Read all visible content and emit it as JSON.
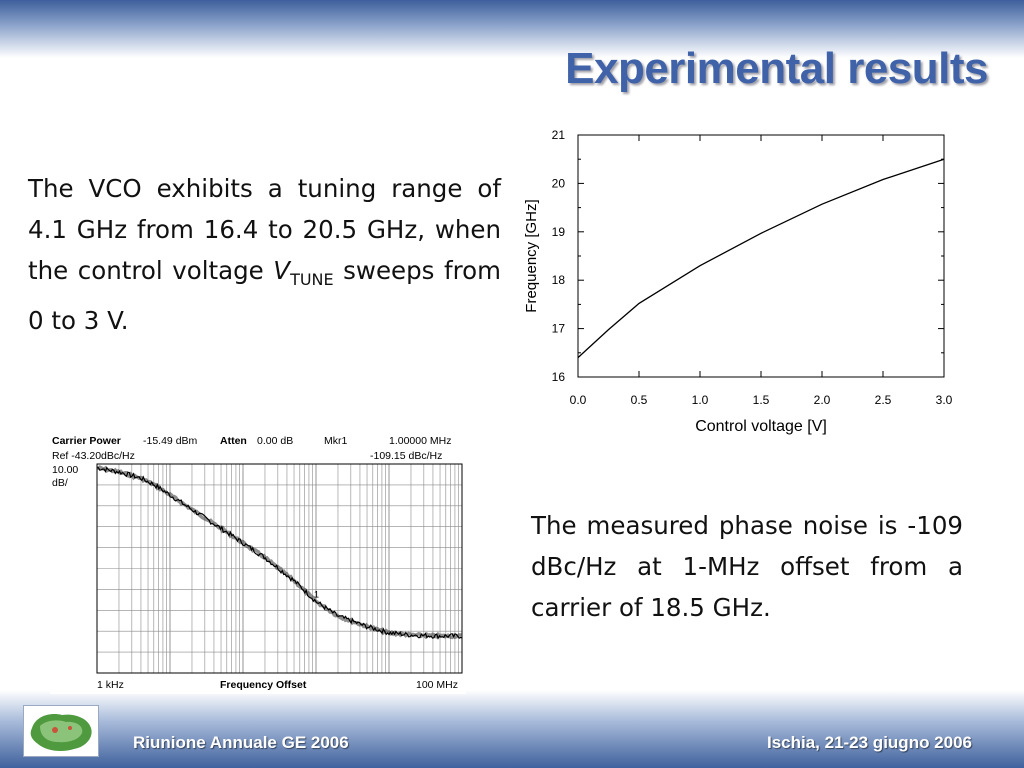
{
  "slide": {
    "title": "Experimental results",
    "paragraph1": {
      "text": "The VCO exhibits a tuning range of 4.1 GHz from 16.4 to 20.5 GHz, when the control voltage",
      "var_main": "V",
      "var_sub": "TUNE",
      "text_after": "sweeps from 0 to 3 V."
    },
    "paragraph2": "The measured phase noise is -109 dBc/Hz at 1-MHz offset from a carrier of 18.5 GHz."
  },
  "footer": {
    "left": "Riunione Annuale GE 2006",
    "right": "Ischia, 21-23 giugno 2006"
  },
  "chart_data": [
    {
      "type": "line",
      "title": "",
      "xlabel": "Control voltage [V]",
      "ylabel": "Frequency [GHz]",
      "xlim": [
        0,
        3
      ],
      "ylim": [
        16,
        21
      ],
      "x_ticks": [
        "0.0",
        "0.5",
        "1.0",
        "1.5",
        "2.0",
        "2.5",
        "3.0"
      ],
      "y_ticks": [
        "16",
        "17",
        "18",
        "19",
        "20",
        "21"
      ],
      "series": [
        {
          "x": [
            0,
            0.25,
            0.5,
            1.0,
            1.5,
            2.0,
            2.5,
            3.0
          ],
          "y": [
            16.4,
            16.98,
            17.52,
            18.3,
            18.97,
            19.57,
            20.08,
            20.5
          ]
        }
      ],
      "grid": false,
      "color": "#000000"
    },
    {
      "type": "line",
      "title": "",
      "xlabel": "Frequency Offset",
      "ylabel": "",
      "x_scale": "log",
      "x_range_labels": [
        "1 kHz",
        "100 MHz"
      ],
      "header": {
        "carrier_power_label": "Carrier Power",
        "carrier_power_value": "-15.49 dBm",
        "atten_label": "Atten",
        "atten_value": "0.00 dB",
        "marker_label": "Mkr1",
        "marker_freq": "1.00000 MHz",
        "ref": "Ref -43.20dBc/Hz",
        "marker_value": "-109.15 dBc/Hz",
        "scale_value": "10.00",
        "scale_unit": "dB/"
      },
      "marker_label": "1",
      "series": [
        {
          "x": [
            1000,
            2000,
            4000,
            6000,
            10000,
            20000,
            50000,
            100000,
            200000,
            500000,
            1000000,
            2000000,
            5000000,
            10000000,
            20000000,
            50000000,
            100000000
          ],
          "y": [
            -45,
            -47,
            -50,
            -53,
            -58,
            -65,
            -74,
            -81,
            -88,
            -99,
            -109,
            -116,
            -121,
            -124,
            -125,
            -125.5,
            -125.5
          ]
        }
      ],
      "grid": true
    }
  ]
}
